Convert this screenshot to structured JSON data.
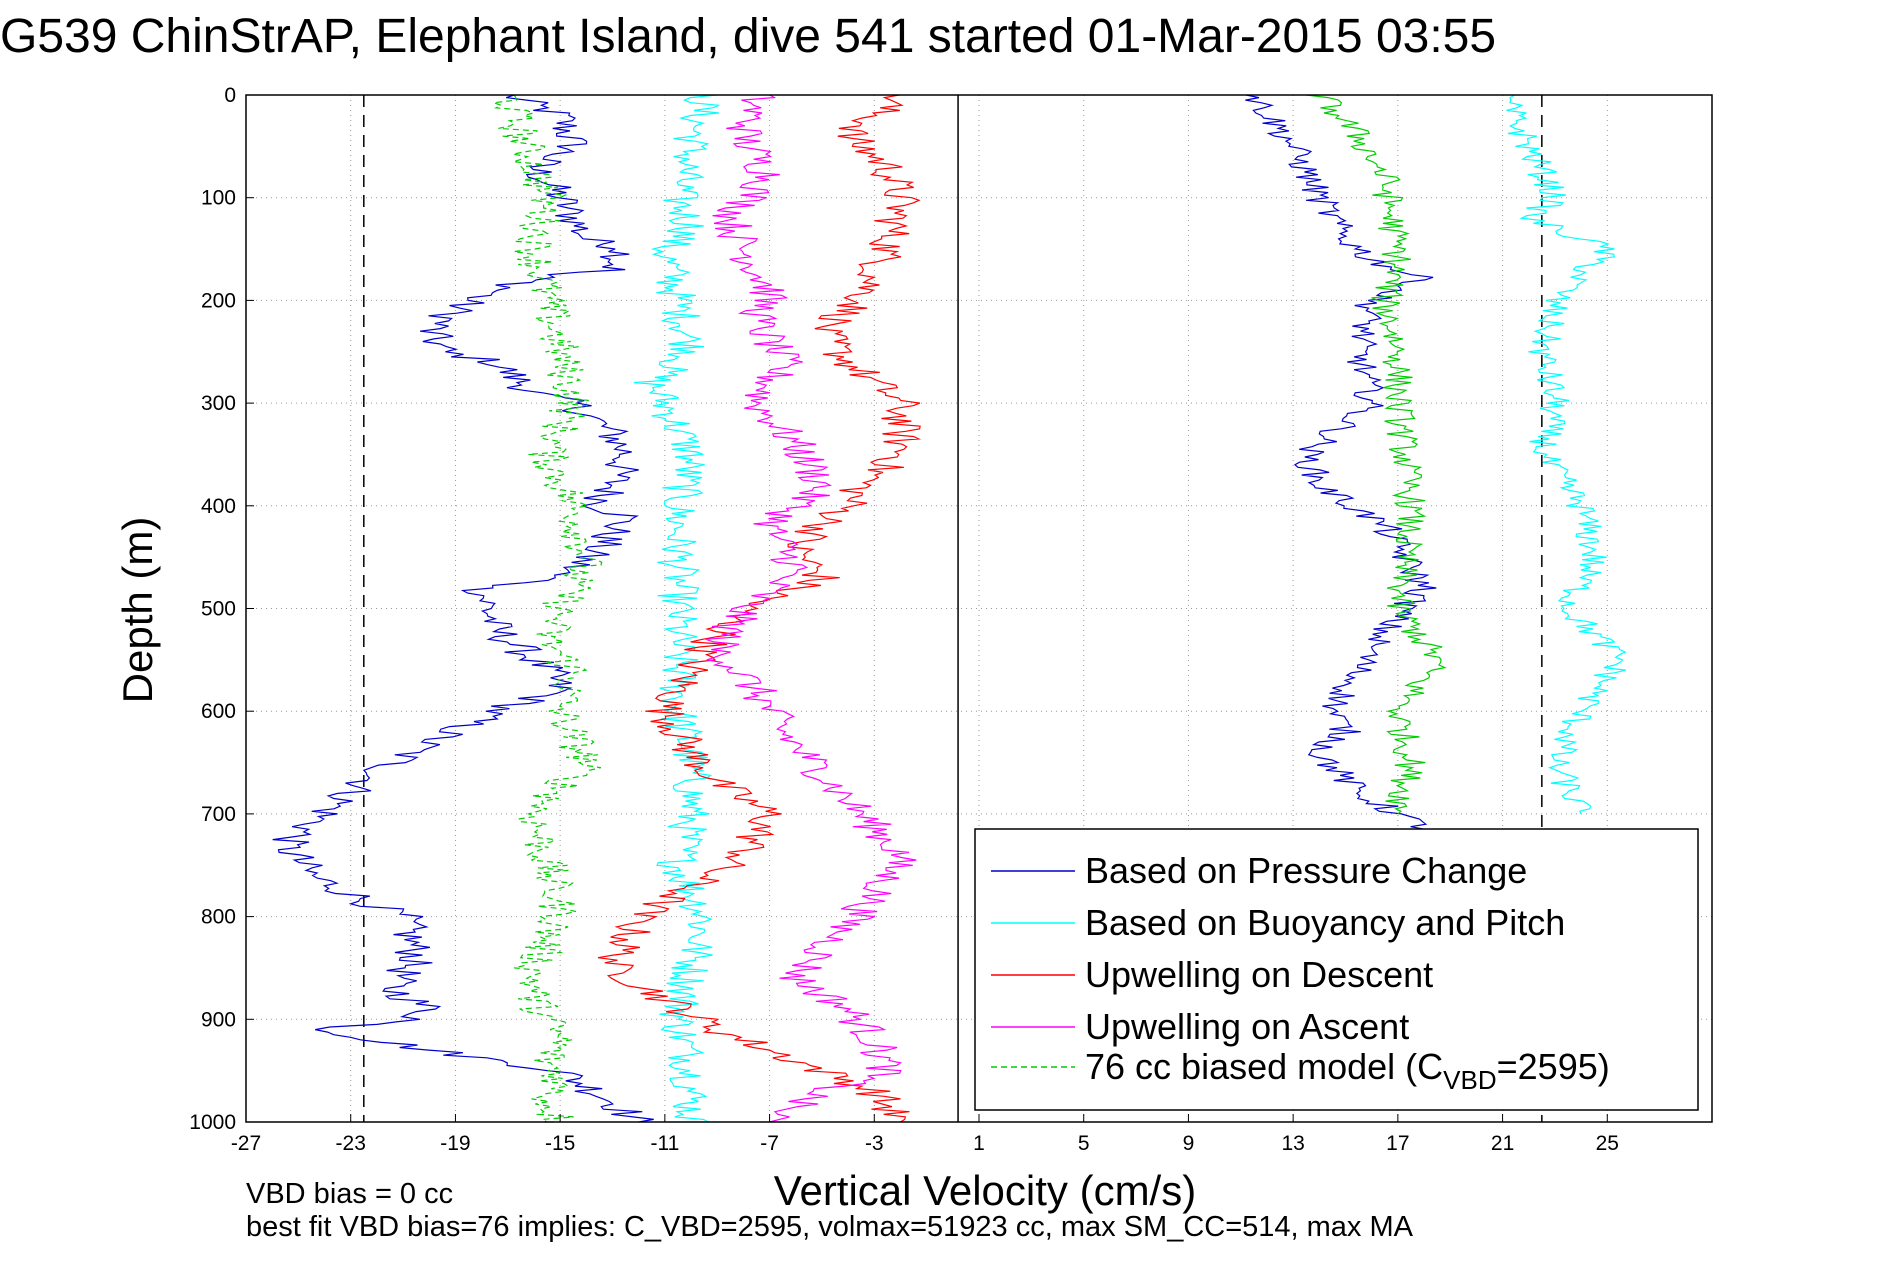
{
  "chart_data": {
    "type": "line",
    "title": "G539 ChinStrAP, Elephant Island, dive 541 started 01-Mar-2015 03:55",
    "xlabel": "Vertical Velocity (cm/s)",
    "ylabel": "Depth (m)",
    "xlim": [
      -27,
      29
    ],
    "ylim": [
      0,
      1000
    ],
    "y_reversed": true,
    "x_ticks": [
      -27,
      -23,
      -19,
      -15,
      -11,
      -7,
      -3,
      1,
      5,
      9,
      13,
      17,
      21,
      25
    ],
    "y_ticks": [
      0,
      100,
      200,
      300,
      400,
      500,
      600,
      700,
      800,
      900,
      1000
    ],
    "x_tick_labels": [
      "-27",
      "-23",
      "-19",
      "-15",
      "-11",
      "-7",
      "-3",
      "1",
      "5",
      "9",
      "13",
      "17",
      "21",
      "25"
    ],
    "y_tick_labels": [
      "0",
      "100",
      "200",
      "300",
      "400",
      "500",
      "600",
      "700",
      "800",
      "900",
      "1000"
    ],
    "grid": true,
    "legend_position": "bottom-right",
    "reference_lines": {
      "vertical_solid_x": 0.2,
      "vertical_dashed_x": [
        -22.5,
        22.5
      ]
    },
    "colors": {
      "pressure": "#0000cc",
      "buoyancy": "#00ffff",
      "upwelling_descent": "#ff0000",
      "upwelling_ascent": "#ff00ff",
      "biased_model": "#00cc00"
    },
    "series": [
      {
        "name": "Based on Pressure Change",
        "color": "#0000cc",
        "style": "solid",
        "x": [
          -17.0,
          -15.0,
          -14.5,
          -16.0,
          -15.0,
          -14.0,
          -12.5,
          -13.0,
          -15.5,
          -18.5,
          -20.0,
          -19.5,
          -17.5,
          -16.0,
          -14.5,
          -13.0,
          -12.5,
          -13.0,
          -13.5,
          -12.5,
          -13.5,
          -14.5,
          -16.0,
          -18.0,
          -17.5,
          -15.5,
          -15.0,
          -17.5,
          -20.0,
          -22.0,
          -24.0,
          -25.5,
          -24.5,
          -22.0,
          -21.0,
          -20.5,
          -21.5,
          -20.0,
          -20.5,
          -24.0,
          -20.0,
          -15.0,
          -13.0,
          -12.0
        ],
        "y": [
          0,
          20,
          50,
          70,
          100,
          140,
          150,
          170,
          175,
          200,
          230,
          250,
          260,
          290,
          300,
          330,
          350,
          380,
          400,
          410,
          440,
          460,
          475,
          480,
          520,
          560,
          580,
          600,
          630,
          660,
          700,
          730,
          760,
          790,
          800,
          840,
          870,
          890,
          900,
          910,
          930,
          950,
          980,
          1000
        ]
      },
      {
        "name": "Based on Buoyancy and Pitch",
        "color": "#00ffff",
        "style": "solid",
        "x": [
          -9.5,
          -10.0,
          -10.5,
          -10.0,
          -11.0,
          -10.5,
          -10.0,
          -11.5,
          -11.0,
          -10.0,
          -10.5,
          -10.5,
          -10.5,
          -10.5,
          -10.5,
          -10.0,
          -10.0,
          -10.5,
          -9.5,
          -10.0,
          -10.5,
          -10.0,
          -10.0,
          -10.5,
          -10.0,
          -10.0,
          -10.0,
          -9.5,
          -9.5
        ],
        "y": [
          0,
          50,
          100,
          130,
          150,
          200,
          250,
          280,
          300,
          350,
          400,
          450,
          500,
          550,
          600,
          650,
          700,
          750,
          800,
          850,
          900,
          950,
          1000,
          1000,
          1000,
          1000,
          1000,
          1000,
          1000
        ]
      },
      {
        "name": "Upwelling on Descent",
        "color": "#ff0000",
        "style": "solid",
        "x": [
          -2.0,
          -4.0,
          -2.5,
          -2.0,
          -2.5,
          -3.5,
          -5.0,
          -4.0,
          -2.0,
          -2.0,
          -3.5,
          -4.0,
          -6.0,
          -5.0,
          -8.0,
          -9.5,
          -11.0,
          -10.0,
          -9.0,
          -7.0,
          -8.0,
          -10.0,
          -12.0,
          -13.0,
          -11.0,
          -9.0,
          -6.0,
          -3.0,
          -2.0
        ],
        "y": [
          0,
          40,
          70,
          100,
          150,
          200,
          230,
          260,
          300,
          350,
          380,
          400,
          440,
          470,
          500,
          540,
          600,
          640,
          670,
          700,
          740,
          770,
          800,
          850,
          880,
          910,
          940,
          970,
          1000
        ]
      },
      {
        "name": "Upwelling on Ascent",
        "color": "#ff00ff",
        "style": "solid",
        "x": [
          -7.5,
          -8.0,
          -7.0,
          -8.5,
          -8.0,
          -7.0,
          -7.5,
          -6.5,
          -7.5,
          -6.0,
          -5.0,
          -7.0,
          -6.0,
          -8.0,
          -9.0,
          -7.5,
          -6.5,
          -5.0,
          -3.5,
          -2.0,
          -3.0,
          -4.5,
          -6.0,
          -4.0,
          -3.0,
          -2.5,
          -5.0,
          -6.5,
          -7.0
        ],
        "y": [
          0,
          40,
          80,
          120,
          150,
          190,
          220,
          260,
          300,
          340,
          380,
          420,
          460,
          500,
          540,
          580,
          620,
          660,
          700,
          740,
          780,
          820,
          860,
          890,
          920,
          950,
          970,
          990,
          1000
        ]
      },
      {
        "name": "76 cc biased model (C_VBD=2595)",
        "color": "#00cc00",
        "style": "dashed",
        "x": [
          -17.0,
          -16.5,
          -15.5,
          -16.0,
          -15.5,
          -15.0,
          -14.5,
          -15.5,
          -14.5,
          -14.0,
          -15.0,
          -15.5,
          -14.5,
          -15.0,
          -14.0,
          -16.0,
          -15.5,
          -15.0,
          -15.5,
          -16.0,
          -16.0,
          -15.5,
          -15.0,
          -15.5,
          -15.0,
          -15.5,
          -15.0,
          -15.0,
          -15.0
        ],
        "y": [
          0,
          40,
          100,
          150,
          200,
          250,
          300,
          350,
          400,
          450,
          500,
          530,
          560,
          600,
          650,
          700,
          750,
          800,
          820,
          850,
          880,
          900,
          920,
          940,
          960,
          980,
          1000,
          1000,
          1000
        ]
      }
    ],
    "right_panel_series": [
      {
        "color": "#0000cc",
        "x": [
          11.5,
          13.0,
          14.0,
          15.0,
          16.0,
          18.0,
          16.0,
          15.5,
          16.0,
          15.0,
          13.5,
          14.0,
          16.5,
          18.0,
          16.5,
          15.5,
          14.5,
          15.0,
          14.0,
          15.5,
          18.5
        ],
        "y": [
          0,
          50,
          100,
          140,
          160,
          180,
          200,
          250,
          300,
          320,
          350,
          380,
          420,
          480,
          520,
          560,
          600,
          620,
          640,
          680,
          720
        ]
      },
      {
        "color": "#00ffff",
        "x": [
          21.0,
          22.0,
          23.0,
          22.0,
          25.0,
          23.0,
          22.5,
          23.0,
          22.5,
          24.0,
          24.5,
          23.5,
          25.5,
          24.0,
          23.0,
          24.0
        ],
        "y": [
          0,
          50,
          100,
          120,
          150,
          200,
          250,
          300,
          350,
          400,
          450,
          500,
          550,
          600,
          650,
          700
        ]
      },
      {
        "color": "#00cc00",
        "x": [
          14.0,
          15.5,
          16.5,
          17.0,
          16.5,
          17.0,
          17.0,
          17.5,
          17.0,
          18.5,
          17.0,
          17.5,
          17.0
        ],
        "y": [
          0,
          40,
          80,
          160,
          200,
          250,
          300,
          400,
          500,
          550,
          600,
          650,
          700
        ]
      }
    ],
    "legend": [
      {
        "label": "Based on Pressure Change",
        "color": "#0000cc",
        "style": "solid"
      },
      {
        "label": "Based on Buoyancy and Pitch",
        "color": "#00ffff",
        "style": "solid"
      },
      {
        "label": "Upwelling on Descent",
        "color": "#ff0000",
        "style": "solid"
      },
      {
        "label": "Upwelling on Ascent",
        "color": "#ff00ff",
        "style": "solid"
      },
      {
        "label": "76 cc biased model (C",
        "subscript": "VBD",
        "suffix": "=2595)",
        "color": "#00cc00",
        "style": "dashed"
      }
    ],
    "annotations": {
      "vbd_bias": "VBD bias = 0 cc",
      "best_fit": "best fit VBD bias=76 implies: C_VBD=2595, volmax=51923 cc, max SM_CC=514, max MA"
    }
  }
}
